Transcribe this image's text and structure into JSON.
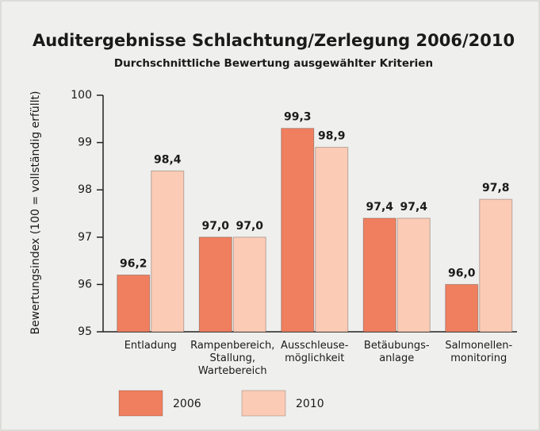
{
  "chart_data": {
    "type": "bar",
    "title": "Auditergebnisse Schlachtung/Zerlegung 2006/2010",
    "subtitle": "Durchschnittliche Bewertung ausgewählter Kriterien",
    "y_label": "Bewertungsindex (100 = vollständig erfüllt)",
    "categories": [
      "Entladung",
      "Rampenbereich,\nStallung,\nWartebereich",
      "Ausschleuse-\nmöglichkeit",
      "Betäubungs-\nanlage",
      "Salmonellen-\nmonitoring"
    ],
    "series": [
      {
        "name": "2006",
        "color": "#f07f5f",
        "values": [
          96.2,
          97.0,
          99.3,
          97.4,
          96.0
        ],
        "value_labels": [
          "96,2",
          "97,0",
          "99,3",
          "97,4",
          "96,0"
        ]
      },
      {
        "name": "2010",
        "color": "#fbcbb5",
        "values": [
          98.4,
          97.0,
          98.9,
          97.4,
          97.8
        ],
        "value_labels": [
          "98,4",
          "97,0",
          "98,9",
          "97,4",
          "97,8"
        ]
      }
    ],
    "ylim": [
      95,
      100
    ],
    "yticks": [
      95,
      96,
      97,
      98,
      99,
      100
    ],
    "grid": false
  }
}
